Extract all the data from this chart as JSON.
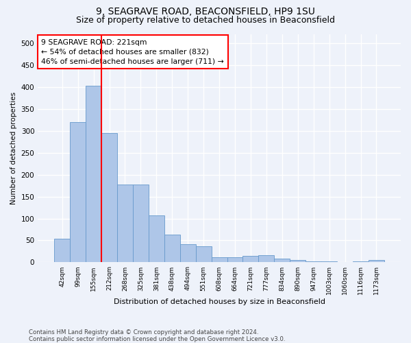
{
  "title1": "9, SEAGRAVE ROAD, BEACONSFIELD, HP9 1SU",
  "title2": "Size of property relative to detached houses in Beaconsfield",
  "xlabel": "Distribution of detached houses by size in Beaconsfield",
  "ylabel": "Number of detached properties",
  "categories": [
    "42sqm",
    "99sqm",
    "155sqm",
    "212sqm",
    "268sqm",
    "325sqm",
    "381sqm",
    "438sqm",
    "494sqm",
    "551sqm",
    "608sqm",
    "664sqm",
    "721sqm",
    "777sqm",
    "834sqm",
    "890sqm",
    "947sqm",
    "1003sqm",
    "1060sqm",
    "1116sqm",
    "1173sqm"
  ],
  "values": [
    54,
    320,
    402,
    295,
    178,
    178,
    107,
    63,
    42,
    36,
    11,
    11,
    15,
    16,
    8,
    5,
    3,
    2,
    1,
    3,
    5
  ],
  "bar_color": "#aec6e8",
  "bar_edge_color": "#6699cc",
  "vline_x": 2.5,
  "vline_color": "red",
  "annotation_text": "9 SEAGRAVE ROAD: 221sqm\n← 54% of detached houses are smaller (832)\n46% of semi-detached houses are larger (711) →",
  "annotation_box_color": "white",
  "annotation_box_edge": "red",
  "ylim": [
    0,
    520
  ],
  "yticks": [
    0,
    50,
    100,
    150,
    200,
    250,
    300,
    350,
    400,
    450,
    500
  ],
  "footer": "Contains HM Land Registry data © Crown copyright and database right 2024.\nContains public sector information licensed under the Open Government Licence v3.0.",
  "bg_color": "#eef2fa",
  "grid_color": "white",
  "title1_fontsize": 10,
  "title2_fontsize": 9
}
